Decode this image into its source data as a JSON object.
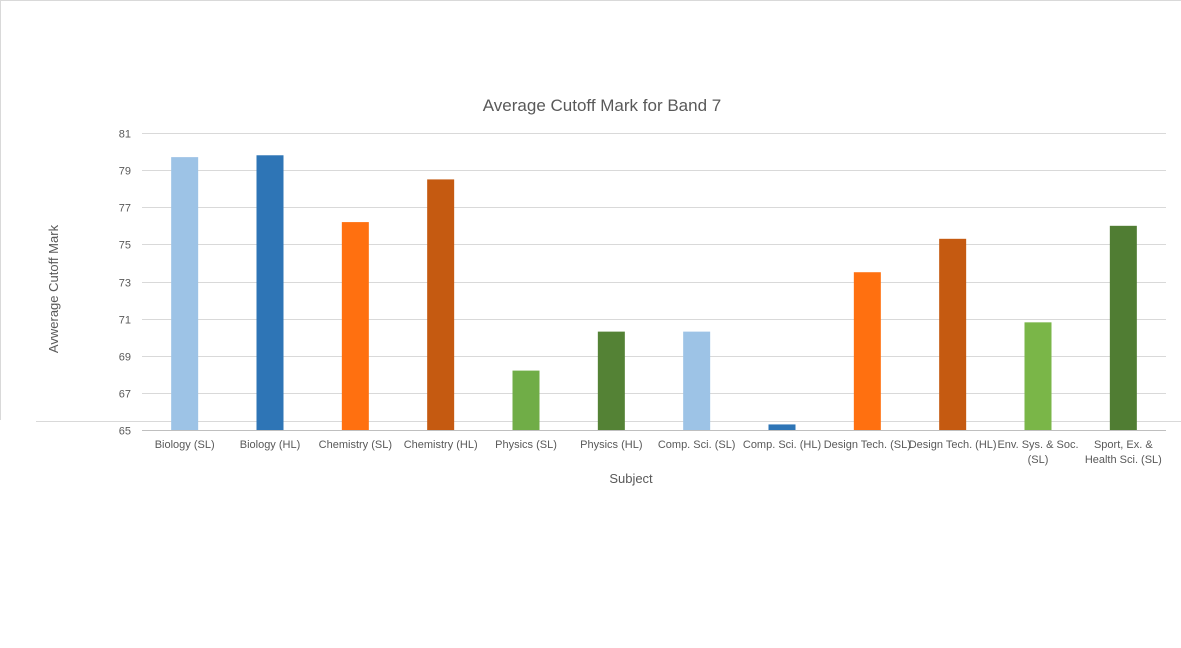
{
  "chart_data": {
    "type": "bar",
    "title": "Average Cutoff Mark for Band 7",
    "xlabel": "Subject",
    "ylabel": "Avwerage Cutoff Mark",
    "ylim": [
      65,
      81
    ],
    "yticks": [
      65,
      67,
      69,
      71,
      73,
      75,
      77,
      79,
      81
    ],
    "grid": true,
    "legend": "none",
    "categories": [
      "Biology (SL)",
      "Biology (HL)",
      "Chemistry (SL)",
      "Chemistry (HL)",
      "Physics (SL)",
      "Physics (HL)",
      "Comp. Sci. (SL)",
      "Comp. Sci. (HL)",
      "Design Tech. (SL)",
      "Design Tech. (HL)",
      "Env. Sys. & Soc. (SL)",
      "Sport, Ex. & Health Sci. (SL)"
    ],
    "category_lines": [
      [
        "Biology (SL)"
      ],
      [
        "Biology (HL)"
      ],
      [
        "Chemistry (SL)"
      ],
      [
        "Chemistry (HL)"
      ],
      [
        "Physics (SL)"
      ],
      [
        "Physics (HL)"
      ],
      [
        "Comp. Sci. (SL)"
      ],
      [
        "Comp. Sci. (HL)"
      ],
      [
        "Design Tech. (SL)"
      ],
      [
        "Design Tech. (HL)"
      ],
      [
        "Env. Sys. & Soc.",
        "(SL)"
      ],
      [
        "Sport, Ex. &",
        "Health Sci. (SL)"
      ]
    ],
    "values": [
      79.7,
      79.8,
      76.2,
      78.5,
      68.2,
      70.3,
      70.3,
      65.3,
      73.5,
      75.3,
      70.8,
      76.0
    ],
    "colors": [
      "#9dc3e6",
      "#2e75b6",
      "#ff7010",
      "#c55a11",
      "#70ad47",
      "#548235",
      "#9dc3e6",
      "#2e75b6",
      "#ff7010",
      "#c55a11",
      "#7ab648",
      "#507d33"
    ]
  }
}
